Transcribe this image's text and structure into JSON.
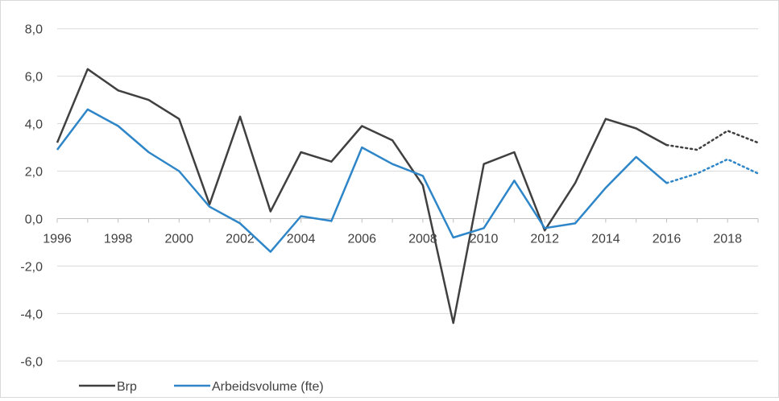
{
  "chart_data": {
    "type": "line",
    "x": [
      1996,
      1997,
      1998,
      1999,
      2000,
      2001,
      2002,
      2003,
      2004,
      2005,
      2006,
      2007,
      2008,
      2009,
      2010,
      2011,
      2012,
      2013,
      2014,
      2015,
      2016,
      2017,
      2018,
      2019
    ],
    "x_tick_labels": [
      "1996",
      "1998",
      "2000",
      "2002",
      "2004",
      "2006",
      "2008",
      "2010",
      "2012",
      "2014",
      "2016",
      "2018"
    ],
    "y_tick_labels": [
      "8,0",
      "6,0",
      "4,0",
      "2,0",
      "0,0",
      "-2,0",
      "-4,0",
      "-6,0"
    ],
    "y_ticks": [
      8,
      6,
      4,
      2,
      0,
      -2,
      -4,
      -6
    ],
    "ylim": [
      -6.5,
      8.5
    ],
    "xlim": [
      1996,
      2019
    ],
    "grid": true,
    "legend_position": "bottom-left",
    "projection_from": 2016,
    "series": [
      {
        "name": "Brp",
        "color": "#404040",
        "values": [
          3.2,
          6.3,
          5.4,
          5.0,
          4.2,
          0.6,
          4.3,
          0.3,
          2.8,
          2.4,
          3.9,
          3.3,
          1.4,
          -4.4,
          2.3,
          2.8,
          -0.5,
          1.5,
          4.2,
          3.8,
          3.1,
          2.9,
          3.7,
          3.2
        ]
      },
      {
        "name": "Arbeidsvolume (fte)",
        "color": "#2e86c8",
        "values": [
          2.9,
          4.6,
          3.9,
          2.8,
          2.0,
          0.5,
          -0.2,
          -1.4,
          0.1,
          -0.1,
          3.0,
          2.3,
          1.8,
          -0.8,
          -0.4,
          1.6,
          -0.4,
          -0.2,
          1.3,
          2.6,
          1.5,
          1.9,
          2.5,
          1.9
        ]
      }
    ]
  }
}
